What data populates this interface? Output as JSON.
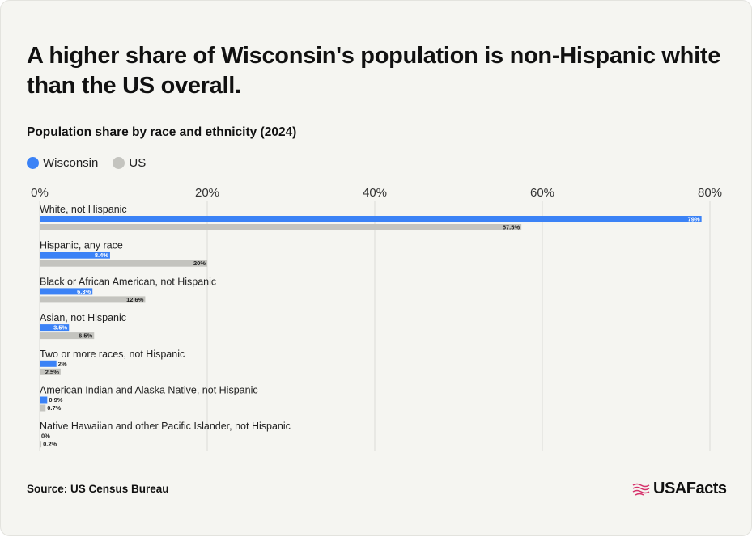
{
  "title": "A higher share of Wisconsin's population is non-Hispanic white than the US overall.",
  "subtitle": "Population share by race and ethnicity (2024)",
  "source": "Source: US Census Bureau",
  "brand": "USAFacts",
  "colors": {
    "wisconsin": "#3b82f6",
    "us": "#c4c4bf",
    "grid": "#dcdcd6",
    "background": "#f5f5f1"
  },
  "legend": [
    {
      "name": "Wisconsin",
      "color": "#3b82f6"
    },
    {
      "name": "US",
      "color": "#c4c4bf"
    }
  ],
  "chart_data": {
    "type": "bar",
    "orientation": "horizontal",
    "xlim": [
      0,
      80
    ],
    "ticks": [
      "0%",
      "20%",
      "40%",
      "60%",
      "80%"
    ],
    "tick_values": [
      0,
      20,
      40,
      60,
      80
    ],
    "grid": true,
    "legend_position": "top-left",
    "categories": [
      "White, not Hispanic",
      "Hispanic, any race",
      "Black or African American, not Hispanic",
      "Asian, not Hispanic",
      "Two or more races, not Hispanic",
      "American Indian and Alaska Native, not Hispanic",
      "Native Hawaiian and other Pacific Islander, not Hispanic"
    ],
    "series": [
      {
        "name": "Wisconsin",
        "values": [
          79,
          8.4,
          6.3,
          3.5,
          2,
          0.9,
          0
        ],
        "labels": [
          "79%",
          "8.4%",
          "6.3%",
          "3.5%",
          "2%",
          "0.9%",
          "0%"
        ]
      },
      {
        "name": "US",
        "values": [
          57.5,
          20,
          12.6,
          6.5,
          2.5,
          0.7,
          0.2
        ],
        "labels": [
          "57.5%",
          "20%",
          "12.6%",
          "6.5%",
          "2.5%",
          "0.7%",
          "0.2%"
        ]
      }
    ]
  }
}
